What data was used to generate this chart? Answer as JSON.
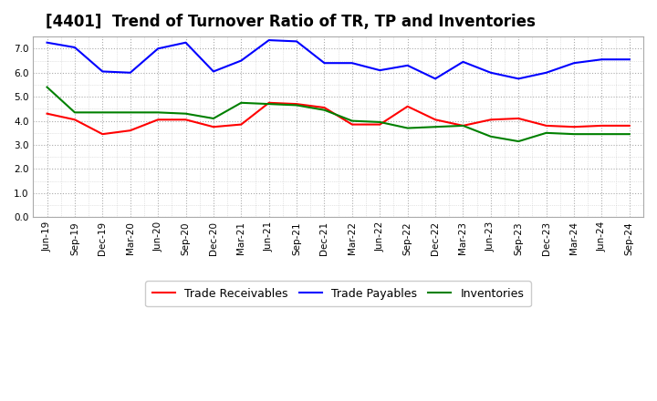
{
  "title": "[4401]  Trend of Turnover Ratio of TR, TP and Inventories",
  "x_labels": [
    "Jun-19",
    "Sep-19",
    "Dec-19",
    "Mar-20",
    "Jun-20",
    "Sep-20",
    "Dec-20",
    "Mar-21",
    "Jun-21",
    "Sep-21",
    "Dec-21",
    "Mar-22",
    "Jun-22",
    "Sep-22",
    "Dec-22",
    "Mar-23",
    "Jun-23",
    "Sep-23",
    "Dec-23",
    "Mar-24",
    "Jun-24",
    "Sep-24"
  ],
  "trade_receivables": [
    4.3,
    4.05,
    3.45,
    3.6,
    4.05,
    4.05,
    3.75,
    3.85,
    4.75,
    4.7,
    4.55,
    3.85,
    3.85,
    4.6,
    4.05,
    3.8,
    4.05,
    4.1,
    3.8,
    3.75,
    3.8,
    3.8
  ],
  "trade_payables": [
    7.25,
    7.05,
    6.05,
    6.0,
    7.0,
    7.25,
    6.05,
    6.5,
    7.35,
    7.3,
    6.4,
    6.4,
    6.1,
    6.3,
    5.75,
    6.45,
    6.0,
    5.75,
    6.0,
    6.4,
    6.55,
    6.55
  ],
  "inventories": [
    5.4,
    4.35,
    4.35,
    4.35,
    4.35,
    4.3,
    4.1,
    4.75,
    4.7,
    4.65,
    4.45,
    4.0,
    3.95,
    3.7,
    3.75,
    3.8,
    3.35,
    3.15,
    3.5,
    3.45,
    3.45,
    3.45
  ],
  "ylim": [
    0.0,
    7.5
  ],
  "yticks": [
    0.0,
    1.0,
    2.0,
    3.0,
    4.0,
    5.0,
    6.0,
    7.0
  ],
  "tr_color": "#ff0000",
  "tp_color": "#0000ff",
  "inv_color": "#008000",
  "bg_color": "#ffffff",
  "plot_bg_color": "#ffffff",
  "grid_color": "#aaaaaa",
  "legend_tr": "Trade Receivables",
  "legend_tp": "Trade Payables",
  "legend_inv": "Inventories",
  "title_fontsize": 12,
  "tick_fontsize": 7.5,
  "legend_fontsize": 9,
  "line_width": 1.5
}
